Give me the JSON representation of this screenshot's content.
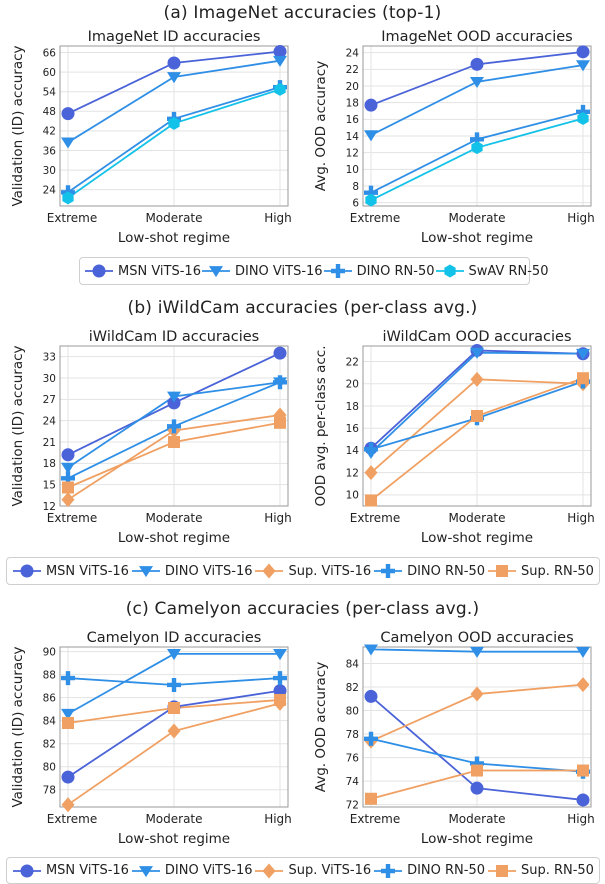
{
  "sections": [
    {
      "title": "(a) ImageNet accuracies (top-1)",
      "legend": [
        {
          "name": "MSN ViTS-16",
          "color": "#4a63d8",
          "marker": "circle"
        },
        {
          "name": "DINO ViTS-16",
          "color": "#2f8fe6",
          "marker": "triangle"
        },
        {
          "name": "DINO RN-50",
          "color": "#2f8fe6",
          "marker": "plus"
        },
        {
          "name": "SwAV RN-50",
          "color": "#12c2e8",
          "marker": "hexagon"
        }
      ]
    },
    {
      "title": "(b) iWildCam accuracies (per-class avg.)",
      "legend": [
        {
          "name": "MSN ViTS-16",
          "color": "#4a63d8",
          "marker": "circle"
        },
        {
          "name": "DINO ViTS-16",
          "color": "#2f8fe6",
          "marker": "triangle"
        },
        {
          "name": "Sup. ViTS-16",
          "color": "#f0a062",
          "marker": "diamond"
        },
        {
          "name": "DINO RN-50",
          "color": "#2f8fe6",
          "marker": "plus"
        },
        {
          "name": "Sup. RN-50",
          "color": "#f0a062",
          "marker": "square"
        }
      ]
    },
    {
      "title": "(c) Camelyon accuracies (per-class avg.)",
      "legend": [
        {
          "name": "MSN ViTS-16",
          "color": "#4a63d8",
          "marker": "circle"
        },
        {
          "name": "DINO ViTS-16",
          "color": "#2f8fe6",
          "marker": "triangle"
        },
        {
          "name": "Sup. ViTS-16",
          "color": "#f0a062",
          "marker": "diamond"
        },
        {
          "name": "DINO RN-50",
          "color": "#2f8fe6",
          "marker": "plus"
        },
        {
          "name": "Sup. RN-50",
          "color": "#f0a062",
          "marker": "square"
        }
      ]
    }
  ],
  "chart_data": [
    {
      "type": "line",
      "title": "ImageNet ID accuracies",
      "xlabel": "Low-shot regime",
      "ylabel": "Validation (ID) accuracy",
      "categories": [
        "Extreme",
        "Moderate",
        "High"
      ],
      "ylim": [
        19,
        68
      ],
      "yticks": [
        "24",
        "30",
        "36",
        "42",
        "48",
        "54",
        "60",
        "66"
      ],
      "grid": true,
      "series": [
        {
          "name": "MSN ViTS-16",
          "color": "#4a63d8",
          "marker": "circle",
          "values": [
            47.3,
            62.8,
            66.3
          ]
        },
        {
          "name": "DINO ViTS-16",
          "color": "#2f8fe6",
          "marker": "triangle",
          "values": [
            38.5,
            58.5,
            63.5
          ]
        },
        {
          "name": "DINO RN-50",
          "color": "#2f8fe6",
          "marker": "plus",
          "values": [
            23.2,
            45.7,
            55.4
          ]
        },
        {
          "name": "SwAV RN-50",
          "color": "#12c2e8",
          "marker": "hexagon",
          "values": [
            21.5,
            44.3,
            54.7
          ]
        }
      ]
    },
    {
      "type": "line",
      "title": "ImageNet OOD accuracies",
      "xlabel": "Low-shot regime",
      "ylabel": "Avg. OOD accuracy",
      "categories": [
        "Extreme",
        "Moderate",
        "High"
      ],
      "ylim": [
        5.6,
        24.8
      ],
      "yticks": [
        "6",
        "8",
        "10",
        "12",
        "14",
        "16",
        "18",
        "20",
        "22",
        "24"
      ],
      "grid": true,
      "series": [
        {
          "name": "MSN ViTS-16",
          "color": "#4a63d8",
          "marker": "circle",
          "values": [
            17.7,
            22.6,
            24.1
          ]
        },
        {
          "name": "DINO ViTS-16",
          "color": "#2f8fe6",
          "marker": "triangle",
          "values": [
            14.1,
            20.5,
            22.5
          ]
        },
        {
          "name": "DINO RN-50",
          "color": "#2f8fe6",
          "marker": "plus",
          "values": [
            7.2,
            13.6,
            16.9
          ]
        },
        {
          "name": "SwAV RN-50",
          "color": "#12c2e8",
          "marker": "hexagon",
          "values": [
            6.3,
            12.6,
            16.1
          ]
        }
      ]
    },
    {
      "type": "line",
      "title": "iWildCam ID accuracies",
      "xlabel": "Low-shot regime",
      "ylabel": "Validation (ID) accuracy",
      "categories": [
        "Extreme",
        "Moderate",
        "High"
      ],
      "ylim": [
        12,
        34.5
      ],
      "yticks": [
        "12",
        "15",
        "18",
        "21",
        "24",
        "27",
        "30",
        "33"
      ],
      "grid": true,
      "series": [
        {
          "name": "MSN ViTS-16",
          "color": "#4a63d8",
          "marker": "circle",
          "values": [
            19.2,
            26.5,
            33.5
          ]
        },
        {
          "name": "DINO ViTS-16",
          "color": "#2f8fe6",
          "marker": "triangle",
          "values": [
            17.4,
            27.4,
            29.4
          ]
        },
        {
          "name": "Sup. ViTS-16",
          "color": "#f0a062",
          "marker": "diamond",
          "values": [
            12.9,
            22.6,
            24.8
          ]
        },
        {
          "name": "DINO RN-50",
          "color": "#2f8fe6",
          "marker": "plus",
          "values": [
            15.9,
            23.2,
            29.4
          ]
        },
        {
          "name": "Sup. RN-50",
          "color": "#f0a062",
          "marker": "square",
          "values": [
            14.6,
            21.0,
            23.7
          ]
        }
      ]
    },
    {
      "type": "line",
      "title": "iWildCam OOD accuracies",
      "xlabel": "Low-shot regime",
      "ylabel": "OOD avg. per-class acc.",
      "categories": [
        "Extreme",
        "Moderate",
        "High"
      ],
      "ylim": [
        9,
        23.4
      ],
      "yticks": [
        "10",
        "12",
        "14",
        "16",
        "18",
        "20",
        "22"
      ],
      "grid": true,
      "series": [
        {
          "name": "MSN ViTS-16",
          "color": "#4a63d8",
          "marker": "circle",
          "values": [
            14.2,
            23.0,
            22.7
          ]
        },
        {
          "name": "DINO ViTS-16",
          "color": "#2f8fe6",
          "marker": "triangle",
          "values": [
            13.8,
            22.8,
            22.7
          ]
        },
        {
          "name": "Sup. ViTS-16",
          "color": "#f0a062",
          "marker": "diamond",
          "values": [
            12.0,
            20.4,
            20.0
          ]
        },
        {
          "name": "DINO RN-50",
          "color": "#2f8fe6",
          "marker": "plus",
          "values": [
            14.1,
            16.9,
            20.2
          ]
        },
        {
          "name": "Sup. RN-50",
          "color": "#f0a062",
          "marker": "square",
          "values": [
            9.5,
            17.1,
            20.5
          ]
        }
      ]
    },
    {
      "type": "line",
      "title": "Camelyon ID accuracies",
      "xlabel": "Low-shot regime",
      "ylabel": "Validation (ID) accuracy",
      "categories": [
        "Extreme",
        "Moderate",
        "High"
      ],
      "ylim": [
        76.5,
        90.4
      ],
      "yticks": [
        "78",
        "80",
        "82",
        "84",
        "86",
        "88",
        "90"
      ],
      "grid": true,
      "series": [
        {
          "name": "MSN ViTS-16",
          "color": "#4a63d8",
          "marker": "circle",
          "values": [
            79.1,
            85.2,
            86.6
          ]
        },
        {
          "name": "DINO ViTS-16",
          "color": "#2f8fe6",
          "marker": "triangle",
          "values": [
            84.6,
            89.8,
            89.8
          ]
        },
        {
          "name": "Sup. ViTS-16",
          "color": "#f0a062",
          "marker": "diamond",
          "values": [
            76.7,
            83.1,
            85.5
          ]
        },
        {
          "name": "DINO RN-50",
          "color": "#2f8fe6",
          "marker": "plus",
          "values": [
            87.7,
            87.1,
            87.7
          ]
        },
        {
          "name": "Sup. RN-50",
          "color": "#f0a062",
          "marker": "square",
          "values": [
            83.8,
            85.1,
            85.8
          ]
        }
      ]
    },
    {
      "type": "line",
      "title": "Camelyon OOD accuracies",
      "xlabel": "Low-shot regime",
      "ylabel": "Avg. OOD accuracy",
      "categories": [
        "Extreme",
        "Moderate",
        "High"
      ],
      "ylim": [
        71.8,
        85.4
      ],
      "yticks": [
        "72",
        "74",
        "76",
        "78",
        "80",
        "82",
        "84"
      ],
      "grid": true,
      "series": [
        {
          "name": "MSN ViTS-16",
          "color": "#4a63d8",
          "marker": "circle",
          "values": [
            81.2,
            73.4,
            72.4
          ]
        },
        {
          "name": "DINO ViTS-16",
          "color": "#2f8fe6",
          "marker": "triangle",
          "values": [
            85.2,
            85.0,
            85.0
          ]
        },
        {
          "name": "Sup. ViTS-16",
          "color": "#f0a062",
          "marker": "diamond",
          "values": [
            77.4,
            81.4,
            82.2
          ]
        },
        {
          "name": "DINO RN-50",
          "color": "#2f8fe6",
          "marker": "plus",
          "values": [
            77.6,
            75.5,
            74.8
          ]
        },
        {
          "name": "Sup. RN-50",
          "color": "#f0a062",
          "marker": "square",
          "values": [
            72.5,
            74.9,
            74.9
          ]
        }
      ]
    }
  ]
}
